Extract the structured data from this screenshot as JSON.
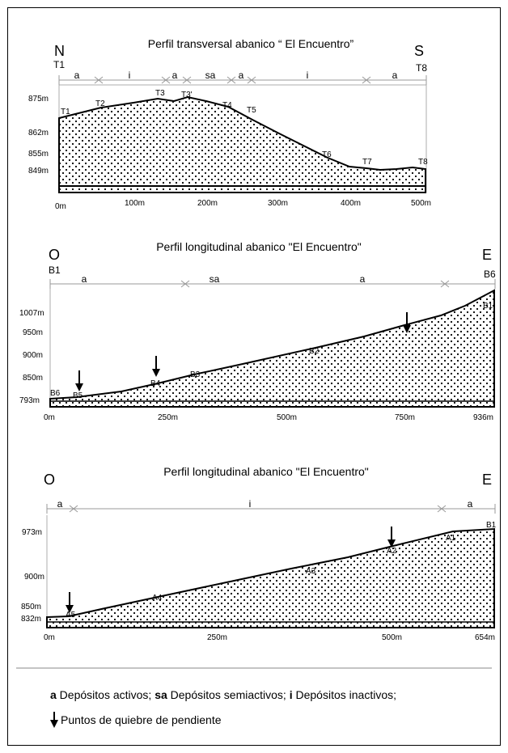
{
  "profiles": [
    {
      "title": "Perfil transversal abanico “ El Encuentro”",
      "dir_left": "N",
      "dir_right": "S",
      "start_label": "T1",
      "end_label": "T8",
      "segments": [
        "a",
        "i",
        "a",
        "sa",
        "a",
        "i",
        "a"
      ],
      "elevation_labels": [
        "875m",
        "862m",
        "855m",
        "849m"
      ],
      "distance_labels": [
        "0m",
        "100m",
        "200m",
        "300m",
        "400m",
        "500m"
      ],
      "points": [
        "T1",
        "T2",
        "T3",
        "T3'",
        "T4",
        "T5",
        "T6",
        "T7",
        "T8"
      ]
    },
    {
      "title": "Perfil longitudinal abanico \"El Encuentro\"",
      "dir_left": "O",
      "dir_right": "E",
      "start_label": "B1",
      "end_label": "B6",
      "segments": [
        "a",
        "sa",
        "a"
      ],
      "elevation_labels": [
        "1007m",
        "950m",
        "900m",
        "850m",
        "793m"
      ],
      "distance_labels": [
        "0m",
        "250m",
        "500m",
        "750m",
        "936m"
      ],
      "points": [
        "B6",
        "B5",
        "B4",
        "B3",
        "B2",
        "B1"
      ]
    },
    {
      "title": "Perfil longitudinal  abanico \"El Encuentro\"",
      "dir_left": "O",
      "dir_right": "E",
      "segments": [
        "a",
        "i",
        "a"
      ],
      "elevation_labels": [
        "973m",
        "900m",
        "850m",
        "832m"
      ],
      "distance_labels": [
        "0m",
        "250m",
        "500m",
        "654m"
      ],
      "points": [
        "A5",
        "A4",
        "A3",
        "A2",
        "A1",
        "B1"
      ]
    }
  ],
  "legend": {
    "a_key": "a",
    "a_text": " Depósitos activos; ",
    "sa_key": "sa",
    "sa_text": " Depósitos semiactivos; ",
    "i_key": "i",
    "i_text": " Depósitos inactivos;",
    "break_text": "Puntos de quiebre de pendiente"
  }
}
